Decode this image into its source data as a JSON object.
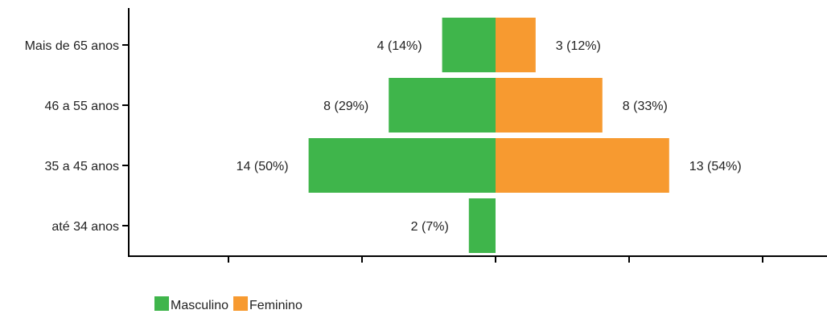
{
  "chart_data": {
    "type": "bar",
    "orientation": "horizontal",
    "layout": "diverging",
    "categories": [
      "Mais de 65 anos",
      "46 a 55 anos",
      "35 a 45 anos",
      "até 34 anos"
    ],
    "series": [
      {
        "name": "Masculino",
        "color": "#3fb54b",
        "direction": "left",
        "values": [
          4,
          8,
          14,
          2
        ],
        "labels": [
          "4 (14%)",
          "8 (29%)",
          "14 (50%)",
          "2 (7%)"
        ]
      },
      {
        "name": "Feminino",
        "color": "#f79a30",
        "direction": "right",
        "values": [
          3,
          8,
          13,
          0
        ],
        "labels": [
          "3 (12%)",
          "8 (33%)",
          "13 (54%)",
          ""
        ]
      }
    ],
    "xlim": [
      -14,
      14
    ],
    "grid": false,
    "legend_position": "bottom-left"
  }
}
